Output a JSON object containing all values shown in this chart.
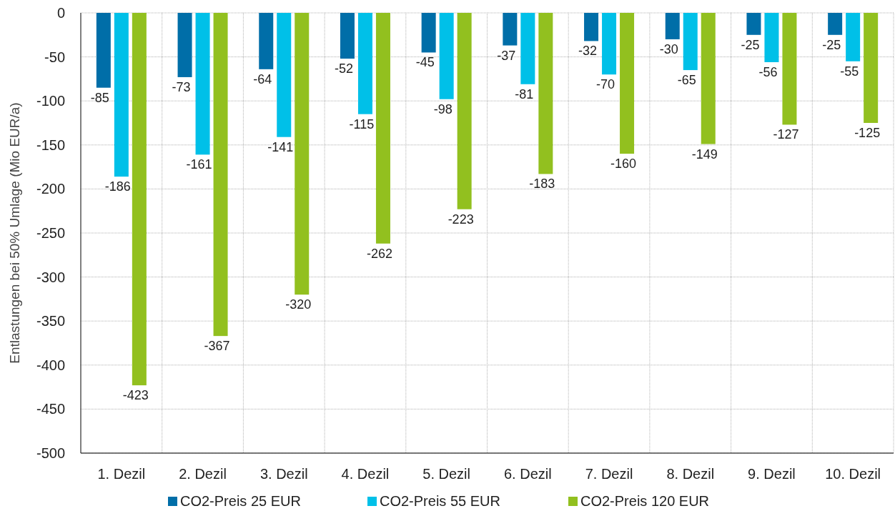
{
  "chart_data": {
    "type": "bar",
    "ylabel": "Entlastungen bei 50% Umlage (Mio EUR/a)",
    "categories": [
      "1. Dezil",
      "2. Dezil",
      "3. Dezil",
      "4. Dezil",
      "5. Dezil",
      "6. Dezil",
      "7. Dezil",
      "8. Dezil",
      "9. Dezil",
      "10. Dezil"
    ],
    "series": [
      {
        "name": "CO2-Preis 25 EUR",
        "color": "#006ea8",
        "values": [
          -85,
          -73,
          -64,
          -52,
          -45,
          -37,
          -32,
          -30,
          -25,
          -25
        ]
      },
      {
        "name": "CO2-Preis 55 EUR",
        "color": "#00c0e8",
        "values": [
          -186,
          -161,
          -141,
          -115,
          -98,
          -81,
          -70,
          -65,
          -56,
          -55
        ]
      },
      {
        "name": "CO2-Preis 120 EUR",
        "color": "#92c01f",
        "values": [
          -423,
          -367,
          -320,
          -262,
          -223,
          -183,
          -160,
          -149,
          -127,
          -125
        ]
      }
    ],
    "ylim": [
      -500,
      0
    ],
    "yticks": [
      -500,
      -450,
      -400,
      -350,
      -300,
      -250,
      -200,
      -150,
      -100,
      -50,
      0
    ],
    "grid": true,
    "data_labels": true,
    "legend": "bottom"
  }
}
